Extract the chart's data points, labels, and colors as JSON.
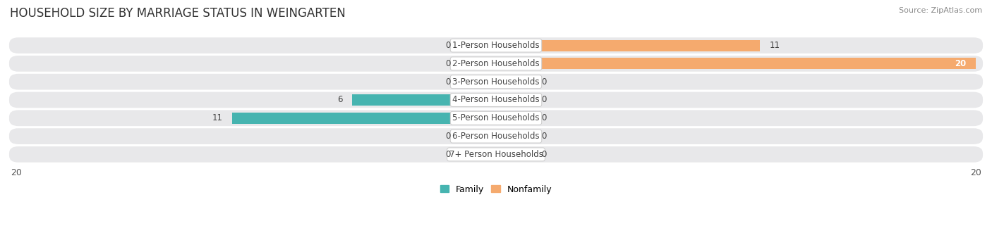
{
  "title": "HOUSEHOLD SIZE BY MARRIAGE STATUS IN WEINGARTEN",
  "source": "Source: ZipAtlas.com",
  "categories": [
    "1-Person Households",
    "2-Person Households",
    "3-Person Households",
    "4-Person Households",
    "5-Person Households",
    "6-Person Households",
    "7+ Person Households"
  ],
  "family": [
    0,
    0,
    0,
    6,
    11,
    0,
    0
  ],
  "nonfamily": [
    11,
    20,
    0,
    0,
    0,
    0,
    0
  ],
  "family_color": "#46b4b0",
  "nonfamily_color": "#f5aa6e",
  "row_bg_color": "#e8e8ea",
  "xlim": 20,
  "stub_size": 1.5,
  "bar_height": 0.62,
  "title_fontsize": 12,
  "label_fontsize": 8.5,
  "tick_fontsize": 9,
  "source_fontsize": 8,
  "legend_fontsize": 9,
  "background_color": "#ffffff"
}
